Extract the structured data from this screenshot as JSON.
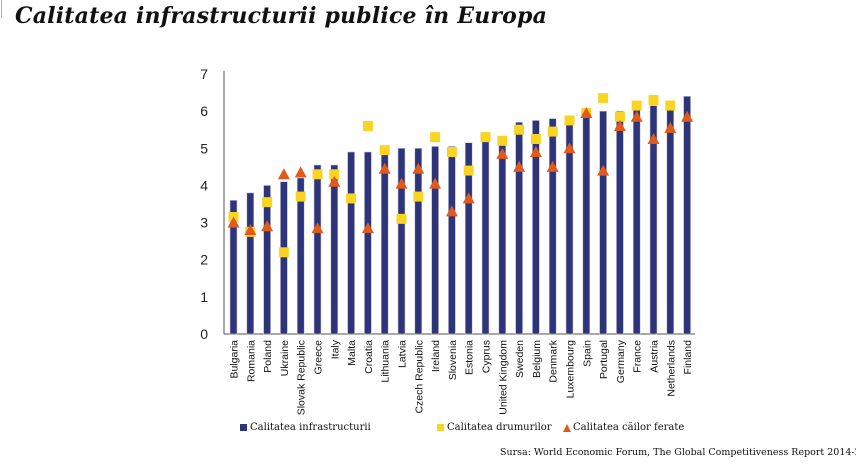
{
  "title": "Calitatea infrastructurii publice în Europa",
  "source": "Sursa: World Economic Forum, The Global Competitiveness Report 2014-2015",
  "colors": {
    "infrastructure": "#2e3478",
    "roads": "#f9d423",
    "railways": "#e05a1c",
    "axis": "#8c8c8c"
  },
  "legend": [
    {
      "label": "Calitatea infrastructurii",
      "marker": "square-navy"
    },
    {
      "label": "Calitatea drumurilor",
      "marker": "square-yellow"
    },
    {
      "label": "Calitatea căilor ferate",
      "marker": "triangle-orange"
    }
  ],
  "chart_data": {
    "type": "bar",
    "title": "Calitatea infrastructurii publice în Europa",
    "xlabel": "",
    "ylabel": "",
    "ylim": [
      0,
      7
    ],
    "yticks": [
      0,
      1,
      2,
      3,
      4,
      5,
      6,
      7
    ],
    "grid": false,
    "legend_position": "bottom",
    "categories": [
      "Bulgaria",
      "Romania",
      "Poland",
      "Ukraine",
      "Slovak Republic",
      "Greece",
      "Italy",
      "Malta",
      "Croatia",
      "Lithuania",
      "Latvia",
      "Czech Republic",
      "Ireland",
      "Slovenia",
      "Estonia",
      "Cyprus",
      "United Kingdom",
      "Sweden",
      "Belgium",
      "Denmark",
      "Luxembourg",
      "Spain",
      "Portugal",
      "Germany",
      "France",
      "Austria",
      "Netherlands",
      "Finland"
    ],
    "series": [
      {
        "name": "Calitatea infrastructurii",
        "kind": "bar",
        "values": [
          3.6,
          3.8,
          4.0,
          4.1,
          4.2,
          4.55,
          4.55,
          4.9,
          4.9,
          4.95,
          5.0,
          5.0,
          5.05,
          5.05,
          5.15,
          5.25,
          5.3,
          5.7,
          5.75,
          5.8,
          5.85,
          6.0,
          6.0,
          6.0,
          6.05,
          6.15,
          6.05,
          6.4
        ]
      },
      {
        "name": "Calitatea drumurilor",
        "kind": "square-marker",
        "values": [
          3.15,
          2.75,
          3.55,
          2.2,
          3.7,
          4.3,
          4.3,
          3.65,
          5.6,
          4.95,
          3.1,
          3.7,
          5.3,
          4.9,
          4.4,
          5.3,
          5.2,
          5.5,
          5.25,
          5.45,
          5.75,
          5.95,
          6.35,
          5.85,
          6.15,
          6.3,
          6.15,
          null
        ]
      },
      {
        "name": "Calitatea căilor ferate",
        "kind": "triangle-marker",
        "values": [
          3.0,
          2.8,
          2.9,
          4.3,
          4.35,
          2.85,
          4.1,
          null,
          2.85,
          4.45,
          4.05,
          4.45,
          4.05,
          3.3,
          3.65,
          null,
          4.85,
          4.5,
          4.9,
          4.5,
          5.0,
          5.95,
          4.4,
          5.6,
          5.85,
          5.25,
          5.55,
          5.85
        ]
      }
    ]
  }
}
